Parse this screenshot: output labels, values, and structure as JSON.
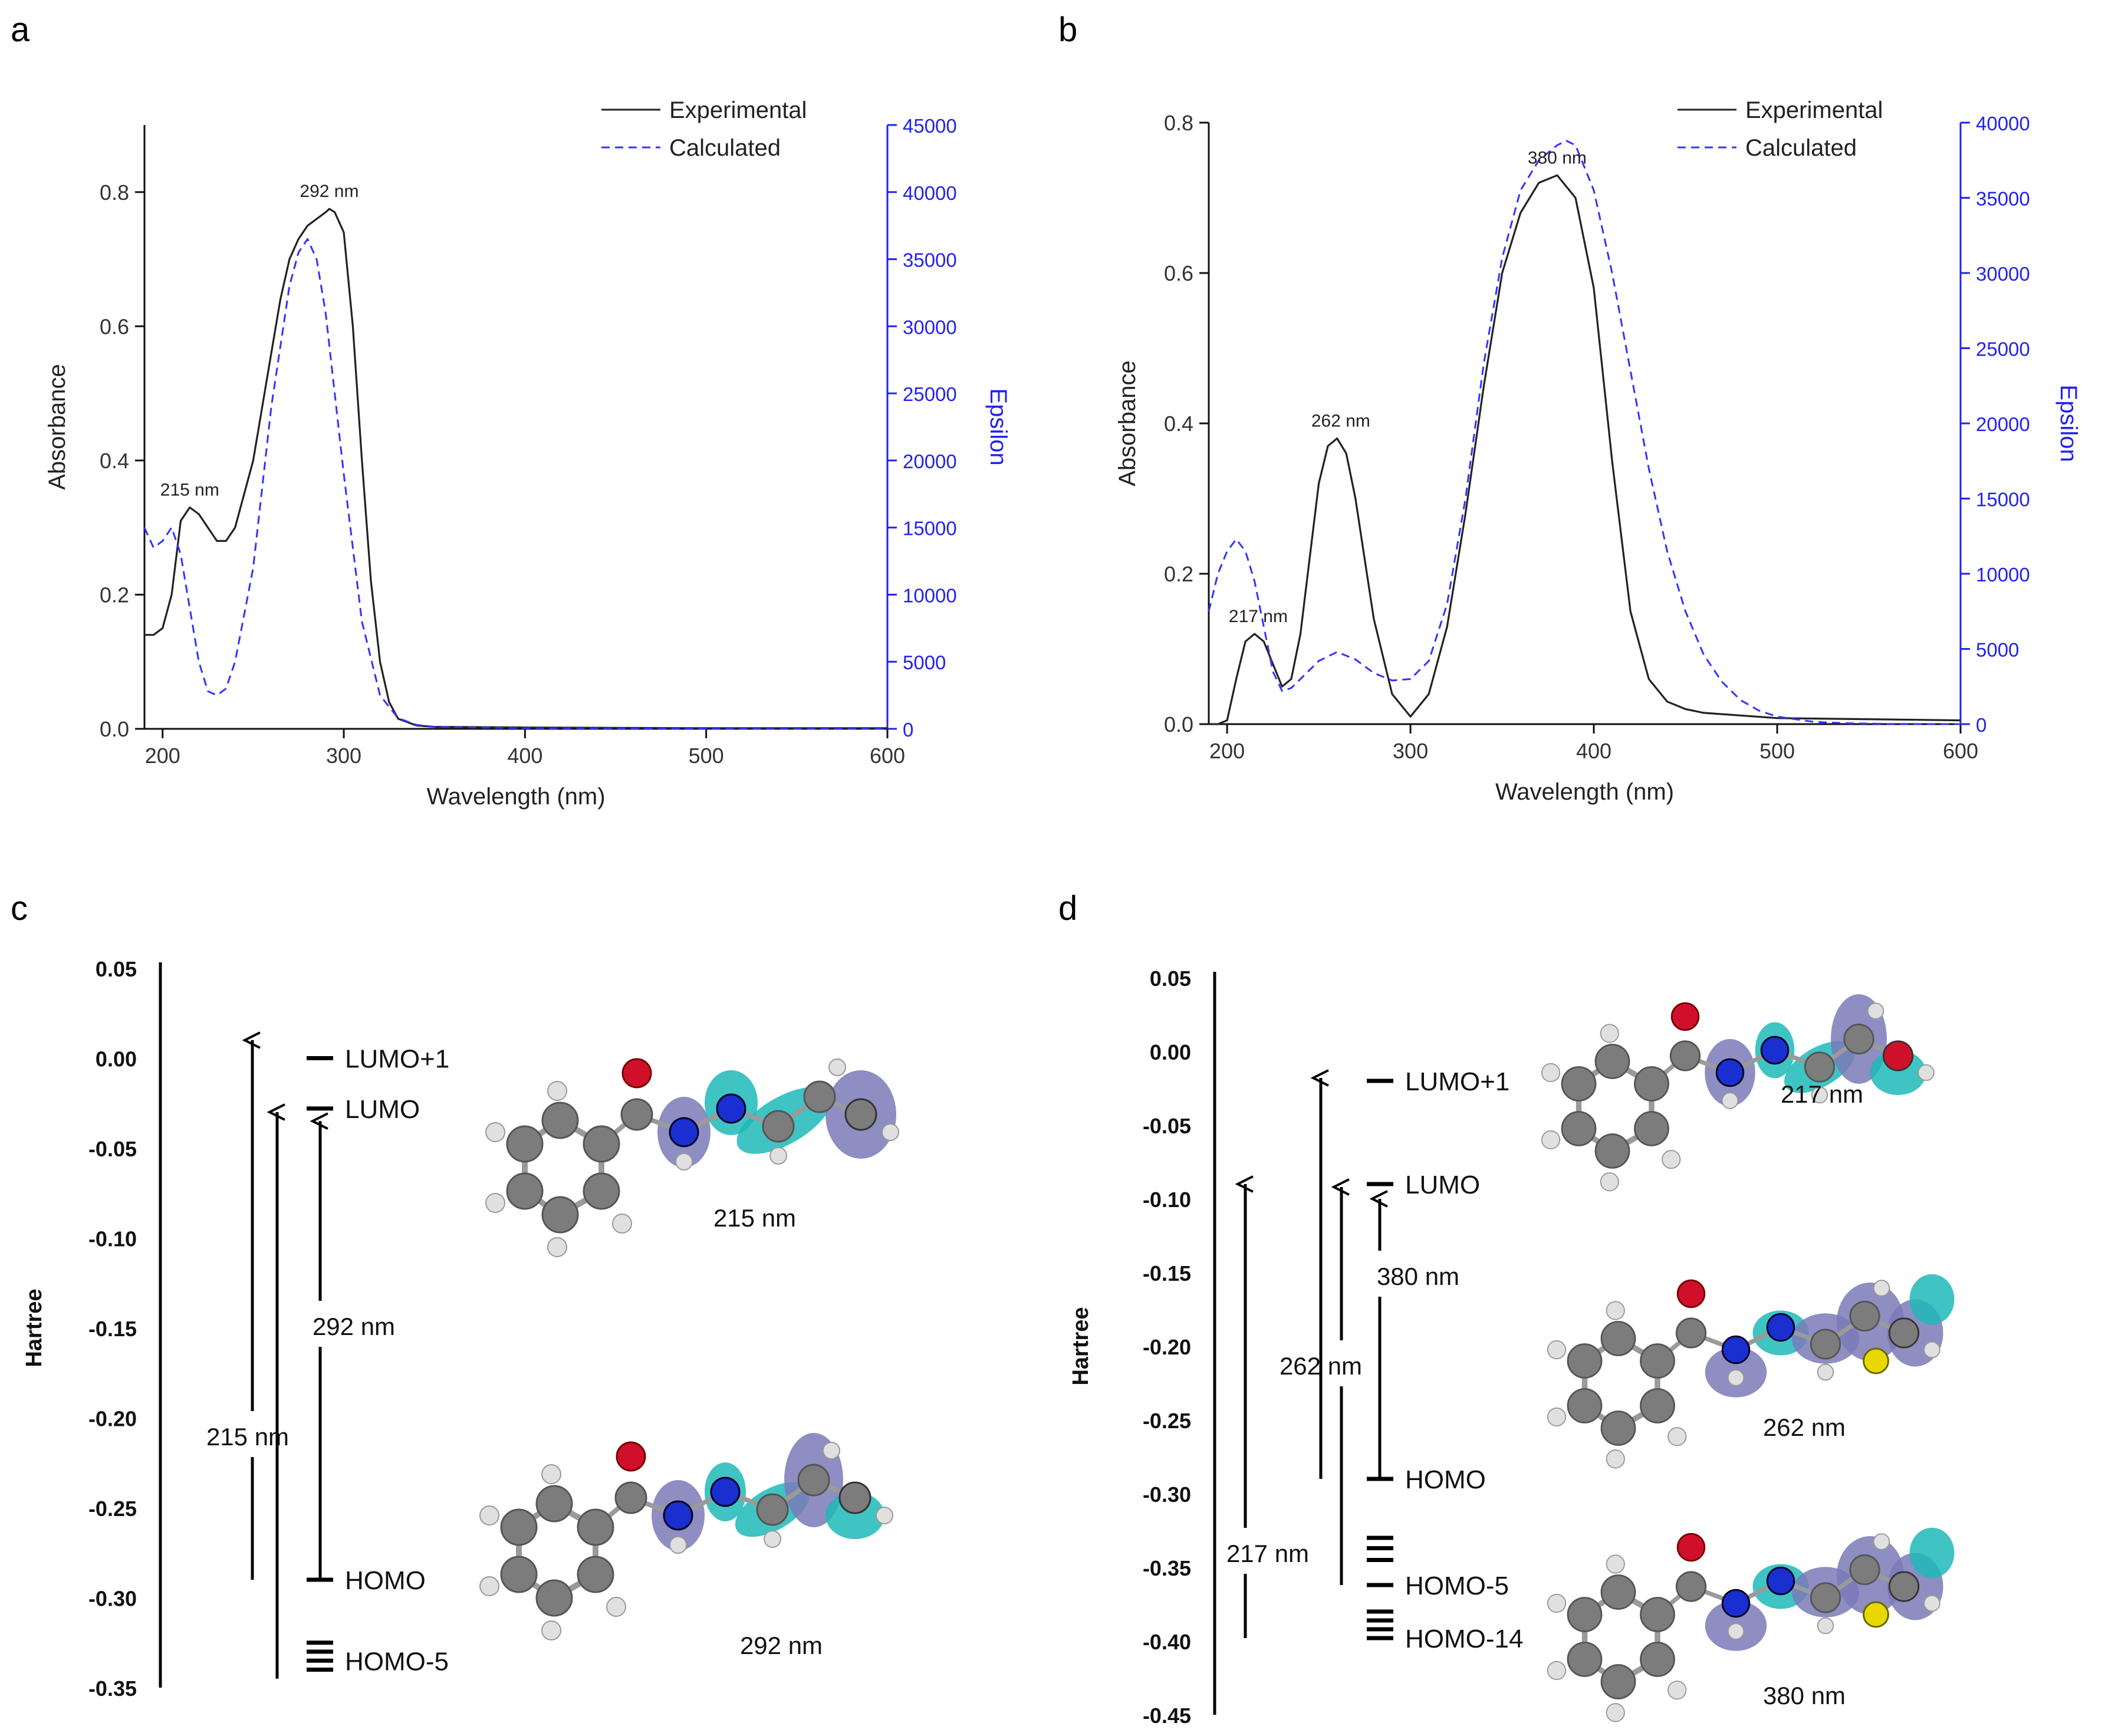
{
  "chart_data": [
    {
      "panel": "a",
      "type": "line",
      "xlabel": "Wavelength (nm)",
      "ylabel": "Absorbance",
      "y2label": "Epsilon",
      "xlim": [
        190,
        600
      ],
      "ylim": [
        0,
        0.9
      ],
      "y2lim": [
        0,
        45000
      ],
      "xticks": [
        200,
        300,
        400,
        500,
        600
      ],
      "yticks": [
        0.0,
        0.2,
        0.4,
        0.6,
        0.8
      ],
      "y2ticks": [
        0,
        5000,
        10000,
        15000,
        20000,
        25000,
        30000,
        35000,
        40000,
        45000
      ],
      "legend": [
        "Experimental",
        "Calculated"
      ],
      "annotations": [
        {
          "text": "215 nm",
          "x": 215,
          "y": 0.33
        },
        {
          "text": "292 nm",
          "x": 292,
          "y": 0.775
        }
      ],
      "series": [
        {
          "name": "Experimental",
          "axis": "left",
          "style": "solid",
          "color": "#222222",
          "x": [
            190,
            195,
            200,
            205,
            210,
            215,
            220,
            225,
            230,
            235,
            240,
            250,
            260,
            265,
            270,
            275,
            280,
            285,
            290,
            292,
            295,
            300,
            305,
            310,
            315,
            320,
            325,
            330,
            340,
            350,
            400,
            500,
            600
          ],
          "y": [
            0.14,
            0.14,
            0.15,
            0.2,
            0.31,
            0.33,
            0.32,
            0.3,
            0.28,
            0.28,
            0.3,
            0.4,
            0.56,
            0.64,
            0.7,
            0.73,
            0.75,
            0.76,
            0.77,
            0.775,
            0.77,
            0.74,
            0.6,
            0.4,
            0.22,
            0.1,
            0.04,
            0.015,
            0.005,
            0.003,
            0.002,
            0.001,
            0.001
          ]
        },
        {
          "name": "Calculated",
          "axis": "right",
          "style": "dashed",
          "color": "#3333ff",
          "x": [
            190,
            195,
            200,
            205,
            210,
            215,
            220,
            225,
            230,
            235,
            240,
            250,
            260,
            270,
            275,
            280,
            285,
            290,
            300,
            310,
            320,
            330,
            340,
            350,
            400,
            500,
            600
          ],
          "y": [
            15000,
            13500,
            14000,
            15000,
            13000,
            9000,
            5000,
            2800,
            2500,
            3000,
            5000,
            12000,
            24000,
            33000,
            35500,
            36500,
            35000,
            31000,
            19000,
            8000,
            2500,
            800,
            300,
            150,
            40,
            5,
            0
          ]
        }
      ]
    },
    {
      "panel": "b",
      "type": "line",
      "xlabel": "Wavelength (nm)",
      "ylabel": "Absorbance",
      "y2label": "Epsilon",
      "xlim": [
        190,
        600
      ],
      "ylim": [
        0,
        0.8
      ],
      "y2lim": [
        0,
        40000
      ],
      "xticks": [
        200,
        300,
        400,
        500,
        600
      ],
      "yticks": [
        0.0,
        0.2,
        0.4,
        0.6,
        0.8
      ],
      "y2ticks": [
        0,
        5000,
        10000,
        15000,
        20000,
        25000,
        30000,
        35000,
        40000
      ],
      "legend": [
        "Experimental",
        "Calculated"
      ],
      "annotations": [
        {
          "text": "217 nm",
          "x": 217,
          "y": 0.12
        },
        {
          "text": "262 nm",
          "x": 262,
          "y": 0.38
        },
        {
          "text": "380 nm",
          "x": 380,
          "y": 0.73
        }
      ],
      "series": [
        {
          "name": "Experimental",
          "axis": "left",
          "style": "solid",
          "color": "#222222",
          "x": [
            190,
            195,
            200,
            205,
            210,
            215,
            220,
            225,
            230,
            235,
            240,
            245,
            250,
            255,
            260,
            265,
            270,
            275,
            280,
            290,
            300,
            310,
            320,
            330,
            340,
            350,
            360,
            370,
            380,
            390,
            400,
            410,
            420,
            430,
            440,
            450,
            460,
            500,
            600
          ],
          "y": [
            0.0,
            0.0,
            0.005,
            0.06,
            0.11,
            0.12,
            0.11,
            0.08,
            0.05,
            0.06,
            0.12,
            0.22,
            0.32,
            0.37,
            0.38,
            0.36,
            0.3,
            0.22,
            0.14,
            0.04,
            0.01,
            0.04,
            0.13,
            0.28,
            0.45,
            0.6,
            0.68,
            0.72,
            0.73,
            0.7,
            0.58,
            0.35,
            0.15,
            0.06,
            0.03,
            0.02,
            0.015,
            0.008,
            0.005
          ]
        },
        {
          "name": "Calculated",
          "axis": "right",
          "style": "dashed",
          "color": "#3333ff",
          "x": [
            190,
            195,
            200,
            205,
            210,
            215,
            220,
            225,
            230,
            235,
            240,
            250,
            260,
            270,
            280,
            290,
            300,
            310,
            320,
            330,
            340,
            350,
            360,
            370,
            380,
            385,
            390,
            400,
            410,
            420,
            430,
            440,
            450,
            460,
            470,
            480,
            490,
            500,
            520,
            540,
            560,
            600
          ],
          "y": [
            7500,
            10000,
            11500,
            12300,
            11500,
            9500,
            6500,
            3500,
            2200,
            2400,
            3000,
            4200,
            4800,
            4300,
            3400,
            2900,
            3000,
            4200,
            8000,
            15000,
            24000,
            31000,
            35500,
            37500,
            38500,
            38800,
            38500,
            35500,
            30000,
            23500,
            17000,
            11500,
            7500,
            4600,
            2800,
            1600,
            900,
            500,
            150,
            50,
            10,
            0
          ]
        }
      ]
    },
    {
      "panel": "c",
      "type": "energy-diagram",
      "ylabel": "Hartree",
      "ylim": [
        -0.35,
        0.05
      ],
      "yticks": [
        "0.05",
        "0.00",
        "-0.05",
        "-0.10",
        "-0.15",
        "-0.20",
        "-0.25",
        "-0.30",
        "-0.35"
      ],
      "levels": [
        {
          "name": "LUMO+1",
          "energy": 0.0
        },
        {
          "name": "LUMO",
          "energy": -0.028
        },
        {
          "name": "HOMO",
          "energy": -0.29
        },
        {
          "name": "HOMO-5",
          "energy": -0.335
        }
      ],
      "extra_levels": [
        -0.325,
        -0.33,
        -0.34
      ],
      "transitions": [
        {
          "label": "215 nm",
          "from": -0.29,
          "to": 0.01
        },
        {
          "label": "",
          "from": -0.345,
          "to": -0.03
        },
        {
          "label": "292 nm",
          "from": -0.29,
          "to": -0.035
        }
      ],
      "orbital_labels": [
        "215 nm",
        "292 nm"
      ]
    },
    {
      "panel": "d",
      "type": "energy-diagram",
      "ylabel": "Hartree",
      "ylim": [
        -0.45,
        0.05
      ],
      "yticks": [
        "0.05",
        "0.00",
        "-0.05",
        "-0.10",
        "-0.15",
        "-0.20",
        "-0.25",
        "-0.30",
        "-0.35",
        "-0.40",
        "-0.45"
      ],
      "levels": [
        {
          "name": "LUMO+1",
          "energy": -0.02
        },
        {
          "name": "LUMO",
          "energy": -0.09
        },
        {
          "name": "HOMO",
          "energy": -0.29
        },
        {
          "name": "HOMO-5",
          "energy": -0.362
        },
        {
          "name": "HOMO-14",
          "energy": -0.398
        }
      ],
      "extra_levels": [
        -0.33,
        -0.337,
        -0.345,
        -0.38,
        -0.386,
        -0.392
      ],
      "transitions": [
        {
          "label": "217 nm",
          "from": -0.398,
          "to": -0.09
        },
        {
          "label": "",
          "from": -0.29,
          "to": -0.018
        },
        {
          "label": "262 nm",
          "from": -0.362,
          "to": -0.092
        },
        {
          "label": "380 nm",
          "from": -0.29,
          "to": -0.1
        }
      ],
      "orbital_labels": [
        "217 nm",
        "262 nm",
        "380 nm"
      ]
    }
  ],
  "panels": {
    "a": {
      "letter": "a"
    },
    "b": {
      "letter": "b"
    },
    "c": {
      "letter": "c"
    },
    "d": {
      "letter": "d"
    }
  },
  "colors": {
    "experimental": "#222222",
    "calculated": "#3333ff",
    "axis": "#111111",
    "right_axis": "#2222ee",
    "orbital_cyan": "#1fb8b8",
    "orbital_purple": "#7a7ab8",
    "atom_gray": "#7c7c7c",
    "atom_white": "#e0e0e0",
    "atom_red": "#d0102a",
    "atom_blue": "#1a2fd0",
    "atom_yellow": "#e8d800"
  }
}
